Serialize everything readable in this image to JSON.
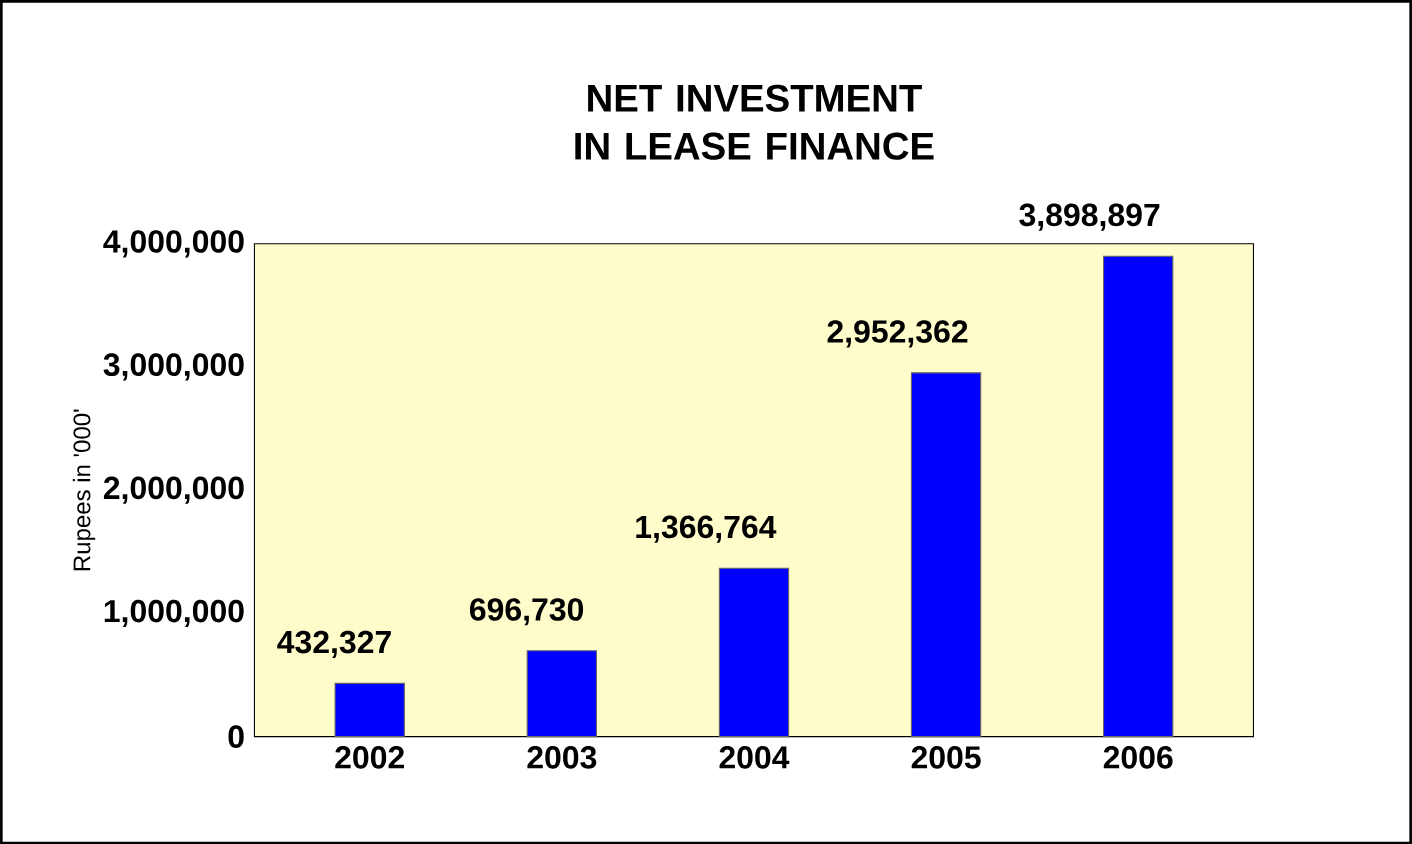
{
  "chart_data": {
    "type": "bar",
    "title": "NET INVESTMENT IN LEASE FINANCE",
    "ylabel": "Rupees in '000'",
    "categories": [
      "2002",
      "2003",
      "2004",
      "2005",
      "2006"
    ],
    "values": [
      432327,
      696730,
      1366764,
      2952362,
      3898897
    ],
    "value_labels": [
      "432,327",
      "696,730",
      "1,366,764",
      "2,952,362",
      "3,898,897"
    ],
    "color": "#0000ff",
    "ylim": [
      0,
      4000000
    ],
    "yticks": [
      {
        "value": 0,
        "label": "0"
      },
      {
        "value": 1000000,
        "label": "1,000,000"
      },
      {
        "value": 2000000,
        "label": "2,000,000"
      },
      {
        "value": 3000000,
        "label": "3,000,000"
      },
      {
        "value": 4000000,
        "label": "4,000,000"
      }
    ]
  }
}
